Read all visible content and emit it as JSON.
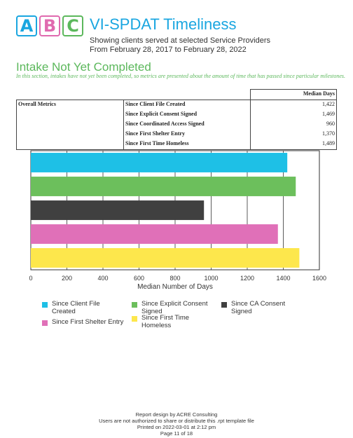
{
  "logo": {
    "letters": [
      {
        "char": "A",
        "color": "#1aa6e0"
      },
      {
        "char": "B",
        "color": "#e06aaf"
      },
      {
        "char": "C",
        "color": "#5cb85c"
      }
    ]
  },
  "header": {
    "title": "VI-SPDAT Timeliness",
    "subtitle_line1": "Showing clients served at selected Service Providers",
    "subtitle_line2": "From February 28, 2017 to February 28, 2022"
  },
  "section": {
    "heading": "Intake Not Yet Completed",
    "description": "In this section, intakes have not yet been completed, so metrics are presented about the amount of time that has passed since particular milestones."
  },
  "table": {
    "column_header": "Median Days",
    "group_label": "Overall Metrics",
    "rows": [
      {
        "label": "Since Client File Created",
        "value": "1,422"
      },
      {
        "label": "Since Explicit Consent Signed",
        "value": "1,469"
      },
      {
        "label": "Since Coordinated Access Signed",
        "value": "960"
      },
      {
        "label": "Since First Shelter Entry",
        "value": "1,370"
      },
      {
        "label": "Since First Time Homeless",
        "value": "1,489"
      }
    ]
  },
  "chart_data": {
    "type": "bar",
    "orientation": "horizontal",
    "categories": [
      "Since Client File Created",
      "Since Explicit Consent Signed",
      "Since CA Consent Signed",
      "Since First Shelter Entry",
      "Since First Time Homeless"
    ],
    "values": [
      1422,
      1469,
      960,
      1370,
      1489
    ],
    "colors": [
      "#1ec0e6",
      "#6cbf5c",
      "#404040",
      "#e070b8",
      "#fde74c"
    ],
    "xlabel": "Median Number of Days",
    "ylabel": "",
    "xlim": [
      0,
      1600
    ],
    "xticks": [
      0,
      200,
      400,
      600,
      800,
      1000,
      1200,
      1400,
      1600
    ],
    "grid": true,
    "legend": "bottom"
  },
  "legend": {
    "items": [
      {
        "label_line1": "Since Client File",
        "label_line2": "Created",
        "color": "#1ec0e6"
      },
      {
        "label_line1": "Since Explicit Consent",
        "label_line2": "Signed",
        "color": "#6cbf5c"
      },
      {
        "label_line1": "Since CA Consent",
        "label_line2": "Signed",
        "color": "#404040"
      },
      {
        "label_line1": "Since First Shelter Entry",
        "label_line2": "",
        "color": "#e070b8"
      },
      {
        "label_line1": "Since First Time",
        "label_line2": "Homeless",
        "color": "#fde74c"
      }
    ]
  },
  "footer": {
    "line1": "Report design by ACRE Consulting",
    "line2": "Users are not authorized to share or distribute this .rpt template file",
    "line3": "Printed on 2022-03-01 at  2:12 pm",
    "line4": "Page 11 of 18"
  }
}
